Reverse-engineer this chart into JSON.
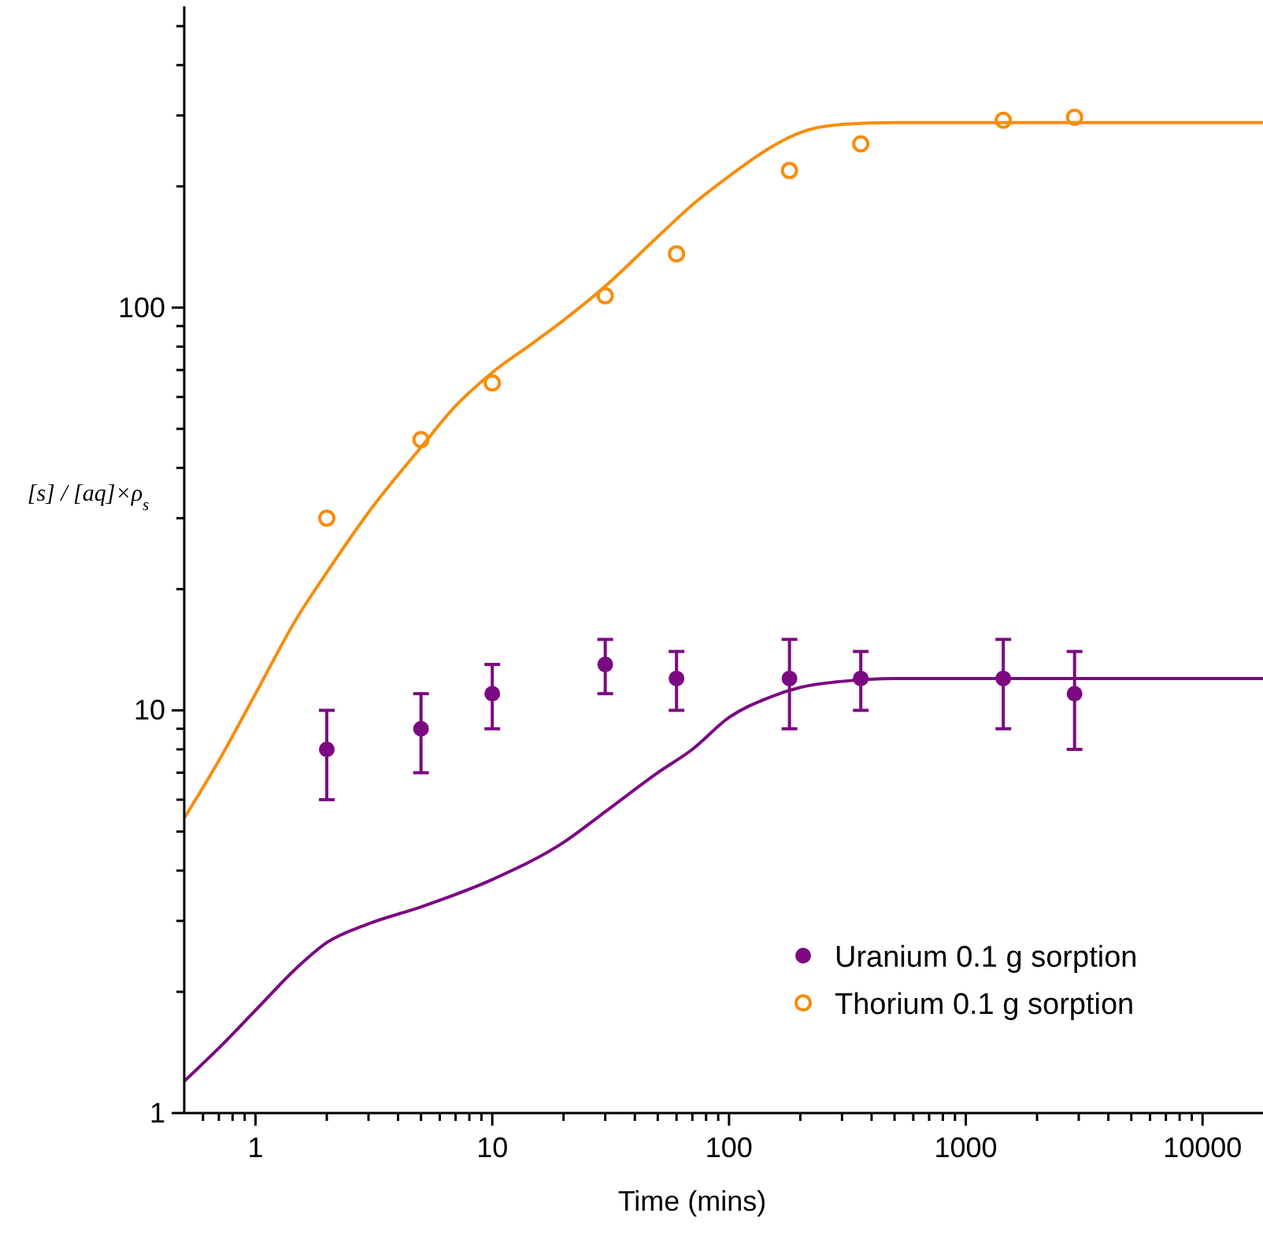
{
  "chart_data": {
    "type": "scatter",
    "xlabel": "Time (mins)",
    "ylabel": "[s] / [aq]×ρ$_{s}$",
    "log": "xy",
    "grid": false,
    "legend": "bottom right",
    "xlim": [
      0.5,
      18000
    ],
    "ylim": [
      1,
      560
    ],
    "xticks": [
      {
        "value": 0.6,
        "label": null
      },
      {
        "value": 0.7,
        "label": null
      },
      {
        "value": 0.8,
        "label": null
      },
      {
        "value": 0.9,
        "label": null
      },
      1,
      {
        "value": 2,
        "label": null
      },
      {
        "value": 3,
        "label": null
      },
      {
        "value": 4,
        "label": null
      },
      {
        "value": 5,
        "label": null
      },
      {
        "value": 6,
        "label": null
      },
      {
        "value": 7,
        "label": null
      },
      {
        "value": 8,
        "label": null
      },
      {
        "value": 9,
        "label": null
      },
      10,
      {
        "value": 20,
        "label": null
      },
      {
        "value": 30,
        "label": null
      },
      {
        "value": 40,
        "label": null
      },
      {
        "value": 50,
        "label": null
      },
      {
        "value": 60,
        "label": null
      },
      {
        "value": 70,
        "label": null
      },
      {
        "value": 80,
        "label": null
      },
      {
        "value": 90,
        "label": null
      },
      100,
      {
        "value": 200,
        "label": null
      },
      {
        "value": 300,
        "label": null
      },
      {
        "value": 400,
        "label": null
      },
      {
        "value": 500,
        "label": null
      },
      {
        "value": 600,
        "label": null
      },
      {
        "value": 700,
        "label": null
      },
      {
        "value": 800,
        "label": null
      },
      {
        "value": 900,
        "label": null
      },
      1000,
      {
        "value": 2000,
        "label": null
      },
      {
        "value": 3000,
        "label": null
      },
      {
        "value": 4000,
        "label": null
      },
      {
        "value": 5000,
        "label": null
      },
      {
        "value": 6000,
        "label": null
      },
      {
        "value": 7000,
        "label": null
      },
      {
        "value": 8000,
        "label": null
      },
      {
        "value": 9000,
        "label": null
      },
      10000
    ],
    "yticks": [
      1,
      {
        "value": 2,
        "label": null
      },
      {
        "value": 3,
        "label": null
      },
      {
        "value": 4,
        "label": null
      },
      {
        "value": 5,
        "label": null
      },
      {
        "value": 6,
        "label": null
      },
      {
        "value": 7,
        "label": null
      },
      {
        "value": 8,
        "label": null
      },
      {
        "value": 9,
        "label": null
      },
      10,
      {
        "value": 20,
        "label": null
      },
      {
        "value": 30,
        "label": null
      },
      {
        "value": 40,
        "label": null
      },
      {
        "value": 50,
        "label": null
      },
      {
        "value": 60,
        "label": null
      },
      {
        "value": 70,
        "label": null
      },
      {
        "value": 80,
        "label": null
      },
      {
        "value": 90,
        "label": null
      },
      100,
      {
        "value": 200,
        "label": null
      },
      {
        "value": 300,
        "label": null
      },
      {
        "value": 400,
        "label": null
      },
      {
        "value": 500,
        "label": null
      }
    ],
    "series": [
      {
        "name": "Uranium 0.1 g sorption",
        "marker": "circle",
        "color": "#7b0a82",
        "x": [
          2,
          5,
          10,
          30,
          60,
          180,
          360,
          1440,
          2880
        ],
        "values": [
          8,
          9,
          11,
          13,
          12,
          12,
          12,
          12,
          11
        ],
        "errors": [
          [
            6,
            10
          ],
          [
            7,
            11
          ],
          [
            9,
            13
          ],
          [
            11,
            15
          ],
          [
            10,
            14
          ],
          [
            9,
            15
          ],
          [
            10,
            14
          ],
          [
            9,
            15
          ],
          [
            8,
            14
          ]
        ]
      },
      {
        "name": "Thorium 0.1 g sorption",
        "marker": "circle_open",
        "color": "#f98c0a",
        "x": [
          2,
          5,
          10,
          30,
          60,
          180,
          360,
          1440,
          2880
        ],
        "values": [
          30,
          47,
          65,
          107,
          136,
          219,
          255,
          292,
          297
        ]
      },
      {
        "type": "line",
        "marker": "none",
        "color": "#f98c0a",
        "x": [
          0.5,
          0.7,
          1,
          1.5,
          2,
          3,
          5,
          7,
          10,
          15,
          20,
          30,
          50,
          70,
          100,
          150,
          200,
          300,
          500,
          1000,
          18000
        ],
        "values": [
          5.4,
          7.5,
          11,
          17,
          22,
          31,
          45,
          57,
          69,
          82,
          93,
          113,
          150,
          180,
          212,
          250,
          272,
          285,
          288,
          288,
          288
        ]
      },
      {
        "type": "line",
        "marker": "none",
        "color": "#7b0a82",
        "x": [
          0.5,
          0.7,
          1,
          1.5,
          2,
          3,
          5,
          10,
          20,
          30,
          50,
          70,
          100,
          150,
          200,
          300,
          500,
          1000,
          18000
        ],
        "values": [
          1.2,
          1.45,
          1.8,
          2.3,
          2.65,
          2.95,
          3.25,
          3.8,
          4.7,
          5.6,
          7,
          8,
          9.6,
          10.8,
          11.4,
          11.8,
          12,
          12,
          12
        ]
      }
    ]
  }
}
